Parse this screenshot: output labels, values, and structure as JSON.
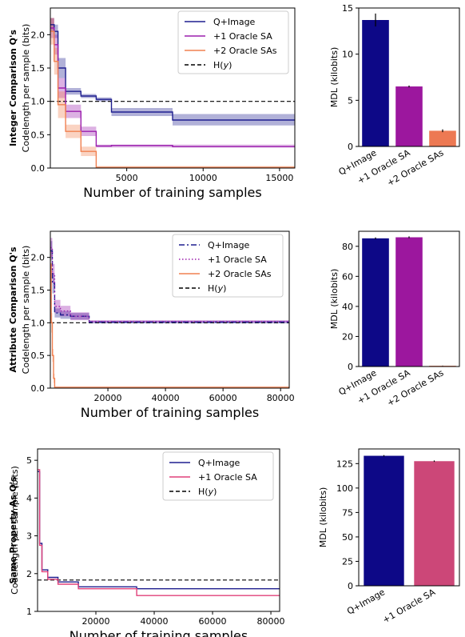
{
  "chart_data": [
    {
      "type": "line",
      "row_title": "Integer Comparison Q's",
      "ylabel": "Codelength per sample (bits)",
      "xlabel": "Number of training samples",
      "xlim": [
        0,
        16000
      ],
      "ylim": [
        0,
        2.4
      ],
      "xticks": [
        5000,
        10000,
        15000
      ],
      "xtick_labels": [
        "5000",
        "10000",
        "15000"
      ],
      "yticks": [
        0.0,
        0.5,
        1.0,
        1.5,
        2.0
      ],
      "ytick_labels": [
        "0.0",
        "0.5",
        "1.0",
        "1.5",
        "2.0"
      ],
      "legend_position": "top-right",
      "reference": {
        "name": "H(y)",
        "value": 1.0,
        "style": "dashed",
        "color": "#000000"
      },
      "series": [
        {
          "name": "Q+Image",
          "color": "#1f1f8f",
          "style": "solid",
          "points": [
            [
              0,
              2.15
            ],
            [
              250,
              2.15
            ],
            [
              250,
              2.05
            ],
            [
              500,
              2.05
            ],
            [
              500,
              1.5
            ],
            [
              1000,
              1.5
            ],
            [
              1000,
              1.15
            ],
            [
              2000,
              1.15
            ],
            [
              2000,
              1.08
            ],
            [
              3000,
              1.08
            ],
            [
              3000,
              1.03
            ],
            [
              4000,
              1.03
            ],
            [
              4000,
              0.84
            ],
            [
              8000,
              0.84
            ],
            [
              8000,
              0.72
            ],
            [
              16000,
              0.72
            ]
          ],
          "band": [
            [
              0,
              2.05,
              2.25
            ],
            [
              250,
              1.95,
              2.15
            ],
            [
              500,
              1.35,
              1.65
            ],
            [
              1000,
              1.1,
              1.2
            ],
            [
              2000,
              1.05,
              1.11
            ],
            [
              3000,
              1.0,
              1.06
            ],
            [
              4000,
              0.78,
              0.9
            ],
            [
              8000,
              0.64,
              0.81
            ],
            [
              16000,
              0.64,
              0.81
            ]
          ]
        },
        {
          "name": "+1 Oracle SA",
          "color": "#9b1fae",
          "style": "solid",
          "points": [
            [
              0,
              2.1
            ],
            [
              250,
              2.1
            ],
            [
              250,
              1.85
            ],
            [
              500,
              1.85
            ],
            [
              500,
              1.2
            ],
            [
              1000,
              1.2
            ],
            [
              1000,
              0.85
            ],
            [
              2000,
              0.85
            ],
            [
              2000,
              0.55
            ],
            [
              3000,
              0.55
            ],
            [
              3000,
              0.33
            ],
            [
              4000,
              0.33
            ],
            [
              4000,
              0.34
            ],
            [
              8000,
              0.34
            ],
            [
              8000,
              0.32
            ],
            [
              16000,
              0.32
            ]
          ],
          "band": [
            [
              0,
              1.95,
              2.25
            ],
            [
              250,
              1.7,
              2.0
            ],
            [
              500,
              1.05,
              1.35
            ],
            [
              1000,
              0.75,
              0.95
            ],
            [
              2000,
              0.48,
              0.62
            ],
            [
              3000,
              0.31,
              0.35
            ],
            [
              16000,
              0.31,
              0.35
            ]
          ]
        },
        {
          "name": "+2 Oracle SAs",
          "color": "#f08050",
          "style": "solid",
          "points": [
            [
              0,
              2.05
            ],
            [
              250,
              2.05
            ],
            [
              250,
              1.6
            ],
            [
              500,
              1.6
            ],
            [
              500,
              0.95
            ],
            [
              1000,
              0.95
            ],
            [
              1000,
              0.55
            ],
            [
              2000,
              0.55
            ],
            [
              2000,
              0.25
            ],
            [
              3000,
              0.25
            ],
            [
              3000,
              0.01
            ],
            [
              4000,
              0.01
            ],
            [
              16000,
              0.01
            ]
          ],
          "band": [
            [
              0,
              1.85,
              2.25
            ],
            [
              250,
              1.4,
              1.8
            ],
            [
              500,
              0.75,
              1.15
            ],
            [
              1000,
              0.45,
              0.65
            ],
            [
              2000,
              0.18,
              0.32
            ],
            [
              3000,
              0.0,
              0.03
            ],
            [
              16000,
              0.0,
              0.03
            ]
          ]
        }
      ]
    },
    {
      "type": "bar",
      "ylabel": "MDL (kilobits)",
      "ylim": [
        0,
        15
      ],
      "yticks": [
        0,
        5,
        10,
        15
      ],
      "ytick_labels": [
        "0",
        "5",
        "10",
        "15"
      ],
      "categories": [
        "Q+Image",
        "+1 Oracle SA",
        "+2 Oracle SAs"
      ],
      "values": [
        13.7,
        6.5,
        1.7
      ],
      "errors": [
        0.7,
        0.1,
        0.15
      ],
      "colors": [
        "#0d0887",
        "#9c179e",
        "#ed7953"
      ]
    },
    {
      "type": "line",
      "row_title": "Attribute Comparison Q's",
      "ylabel": "Codelength per sample (bits)",
      "xlabel": "Number of training samples",
      "xlim": [
        0,
        83000
      ],
      "ylim": [
        0,
        2.4
      ],
      "xticks": [
        20000,
        40000,
        60000,
        80000
      ],
      "xtick_labels": [
        "20000",
        "40000",
        "60000",
        "80000"
      ],
      "yticks": [
        0.0,
        0.5,
        1.0,
        1.5,
        2.0
      ],
      "ytick_labels": [
        "0.0",
        "0.5",
        "1.0",
        "1.5",
        "2.0"
      ],
      "legend_position": "top-right",
      "reference": {
        "name": "H(y)",
        "value": 1.0,
        "style": "dashed",
        "color": "#000000"
      },
      "series": [
        {
          "name": "Q+Image",
          "color": "#1f1f8f",
          "style": "dashdot",
          "points": [
            [
              0,
              2.1
            ],
            [
              700,
              2.1
            ],
            [
              700,
              1.6
            ],
            [
              1500,
              1.6
            ],
            [
              1500,
              1.15
            ],
            [
              3500,
              1.15
            ],
            [
              3500,
              1.12
            ],
            [
              7000,
              1.12
            ],
            [
              7000,
              1.1
            ],
            [
              13500,
              1.1
            ],
            [
              13500,
              1.01
            ],
            [
              83000,
              1.01
            ]
          ],
          "band": [
            [
              0,
              1.95,
              2.25
            ],
            [
              700,
              1.45,
              1.75
            ],
            [
              1500,
              1.08,
              1.22
            ],
            [
              3500,
              1.06,
              1.18
            ],
            [
              7000,
              1.05,
              1.15
            ],
            [
              13500,
              0.99,
              1.03
            ],
            [
              83000,
              0.99,
              1.03
            ]
          ]
        },
        {
          "name": "+1 Oracle SA",
          "color": "#9b1fae",
          "style": "dotted",
          "points": [
            [
              0,
              2.15
            ],
            [
              700,
              2.15
            ],
            [
              700,
              1.75
            ],
            [
              1500,
              1.75
            ],
            [
              1500,
              1.25
            ],
            [
              3500,
              1.25
            ],
            [
              3500,
              1.18
            ],
            [
              7000,
              1.18
            ],
            [
              7000,
              1.1
            ],
            [
              13500,
              1.1
            ],
            [
              13500,
              1.02
            ],
            [
              83000,
              1.02
            ]
          ],
          "band": [
            [
              0,
              2.0,
              2.3
            ],
            [
              700,
              1.6,
              1.9
            ],
            [
              1500,
              1.15,
              1.35
            ],
            [
              3500,
              1.1,
              1.26
            ],
            [
              7000,
              1.04,
              1.16
            ],
            [
              13500,
              1.0,
              1.04
            ],
            [
              83000,
              1.0,
              1.04
            ]
          ]
        },
        {
          "name": "+2 Oracle SAs",
          "color": "#f08050",
          "style": "solid",
          "points": [
            [
              0,
              1.9
            ],
            [
              300,
              1.9
            ],
            [
              300,
              1.0
            ],
            [
              700,
              1.0
            ],
            [
              700,
              0.5
            ],
            [
              1100,
              0.5
            ],
            [
              1100,
              0.15
            ],
            [
              1500,
              0.15
            ],
            [
              1500,
              0.01
            ],
            [
              83000,
              0.01
            ]
          ],
          "band": [
            [
              0,
              1.7,
              2.1
            ],
            [
              300,
              0.85,
              1.15
            ],
            [
              700,
              0.4,
              0.6
            ],
            [
              1100,
              0.08,
              0.22
            ],
            [
              1500,
              0.0,
              0.03
            ],
            [
              83000,
              0.0,
              0.03
            ]
          ]
        }
      ]
    },
    {
      "type": "bar",
      "ylabel": "MDL (kilobits)",
      "ylim": [
        0,
        90
      ],
      "yticks": [
        0,
        20,
        40,
        60,
        80
      ],
      "ytick_labels": [
        "0",
        "20",
        "40",
        "60",
        "80"
      ],
      "categories": [
        "Q+Image",
        "+1 Oracle SA",
        "+2 Oracle SAs"
      ],
      "values": [
        85.3,
        86.0,
        0.5
      ],
      "errors": [
        0.6,
        0.6,
        0.1
      ],
      "colors": [
        "#0d0887",
        "#9c179e",
        "#ed7953"
      ]
    },
    {
      "type": "line",
      "row_title": "Same Property As Q's",
      "ylabel": "Codelength per sample (bits)",
      "xlabel": "Number of training samples",
      "xlim": [
        0,
        83000
      ],
      "ylim": [
        1.0,
        5.3
      ],
      "xticks": [
        20000,
        40000,
        60000,
        80000
      ],
      "xtick_labels": [
        "20000",
        "40000",
        "60000",
        "80000"
      ],
      "yticks": [
        1,
        2,
        3,
        4,
        5
      ],
      "ytick_labels": [
        "1",
        "2",
        "3",
        "4",
        "5"
      ],
      "legend_position": "top-right",
      "reference": {
        "name": "H(y)",
        "value": 1.83,
        "style": "dashed",
        "color": "#000000"
      },
      "series": [
        {
          "name": "Q+Image",
          "color": "#1f1f8f",
          "style": "solid",
          "points": [
            [
              0,
              4.7
            ],
            [
              700,
              4.7
            ],
            [
              700,
              2.8
            ],
            [
              1500,
              2.8
            ],
            [
              1500,
              2.1
            ],
            [
              3500,
              2.1
            ],
            [
              3500,
              1.9
            ],
            [
              7000,
              1.9
            ],
            [
              7000,
              1.78
            ],
            [
              14000,
              1.78
            ],
            [
              14000,
              1.65
            ],
            [
              34000,
              1.65
            ],
            [
              34000,
              1.6
            ],
            [
              83000,
              1.6
            ]
          ]
        },
        {
          "name": "+1 Oracle SA",
          "color": "#e0407a",
          "style": "solid",
          "points": [
            [
              0,
              4.75
            ],
            [
              700,
              4.75
            ],
            [
              700,
              2.75
            ],
            [
              1500,
              2.75
            ],
            [
              1500,
              2.05
            ],
            [
              3500,
              2.05
            ],
            [
              3500,
              1.85
            ],
            [
              7000,
              1.85
            ],
            [
              7000,
              1.72
            ],
            [
              14000,
              1.72
            ],
            [
              14000,
              1.6
            ],
            [
              34000,
              1.6
            ],
            [
              34000,
              1.42
            ],
            [
              83000,
              1.42
            ]
          ]
        }
      ]
    },
    {
      "type": "bar",
      "ylabel": "MDL (kilobits)",
      "ylim": [
        0,
        140
      ],
      "yticks": [
        0,
        25,
        50,
        75,
        100,
        125
      ],
      "ytick_labels": [
        "0",
        "25",
        "50",
        "75",
        "100",
        "125"
      ],
      "categories": [
        "Q+Image",
        "+1 Oracle SA"
      ],
      "values": [
        133.0,
        127.5
      ],
      "errors": [
        0.7,
        0.7
      ],
      "colors": [
        "#0d0887",
        "#cc4778"
      ]
    }
  ]
}
